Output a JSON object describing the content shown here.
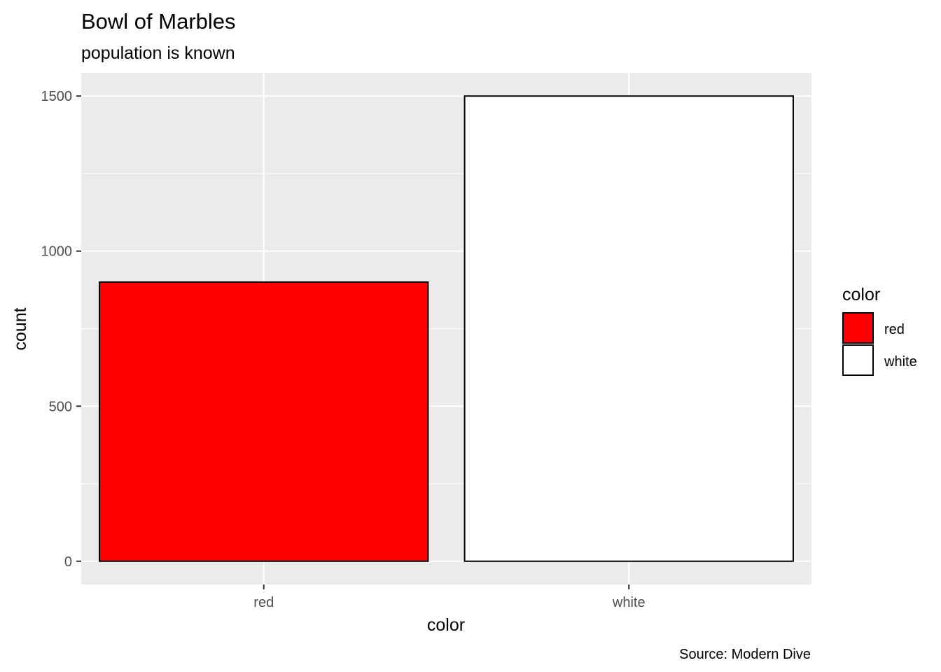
{
  "chart_data": {
    "type": "bar",
    "title": "Bowl of Marbles",
    "subtitle": "population is known",
    "caption": "Source: Modern Dive",
    "xlabel": "color",
    "ylabel": "count",
    "categories": [
      "red",
      "white"
    ],
    "values": [
      900,
      1500
    ],
    "ylim": [
      -75,
      1575
    ],
    "yticks": [
      0,
      500,
      1000,
      1500
    ],
    "grid": true,
    "legend": {
      "title": "color",
      "placement": "right",
      "items": [
        {
          "label": "red",
          "color": "#ff0000"
        },
        {
          "label": "white",
          "color": "#ffffff"
        }
      ]
    },
    "bar_colors": [
      "#ff0000",
      "#ffffff"
    ],
    "bar_outline": "#000000",
    "panel_background": "#ebebeb",
    "grid_color": "#ffffff"
  }
}
